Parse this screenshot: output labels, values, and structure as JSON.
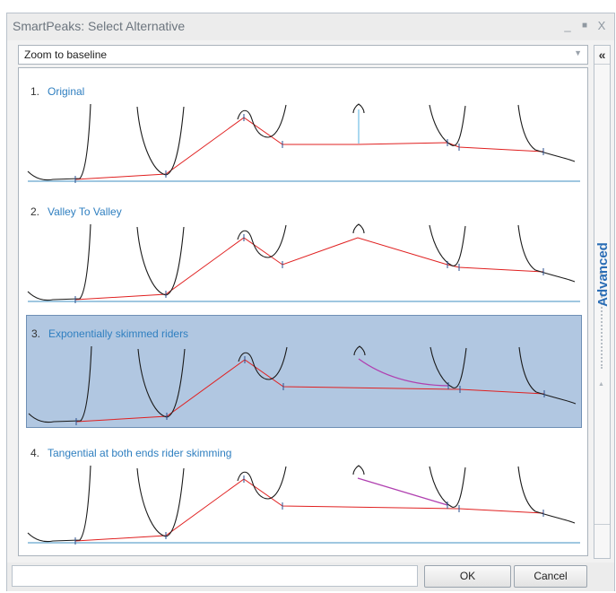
{
  "window": {
    "title": "SmartPeaks: Select Alternative",
    "minimize_glyph": "_",
    "maximize_glyph": "■",
    "close_glyph": "X"
  },
  "zoom": {
    "selected": "Zoom to baseline",
    "icon": "dropdown-arrow-icon"
  },
  "alternatives": [
    {
      "number": "1.",
      "name": "Original",
      "selected": false
    },
    {
      "number": "2.",
      "name": "Valley To Valley",
      "selected": false
    },
    {
      "number": "3.",
      "name": "Exponentially skimmed riders",
      "selected": true
    },
    {
      "number": "4.",
      "name": "Tangential at both ends rider skimming",
      "selected": false
    }
  ],
  "side_panel": {
    "collapse_glyph": "«",
    "label": "Advanced"
  },
  "buttons": {
    "ok": "OK",
    "cancel": "Cancel"
  },
  "colors": {
    "selection_fill": "#b1c7e1",
    "selection_border": "#6e8fb5",
    "link_text": "#2f7fc0",
    "baseline": "#e02020",
    "rider_skim": "#b040b0",
    "separator": "#3f8fc0"
  }
}
